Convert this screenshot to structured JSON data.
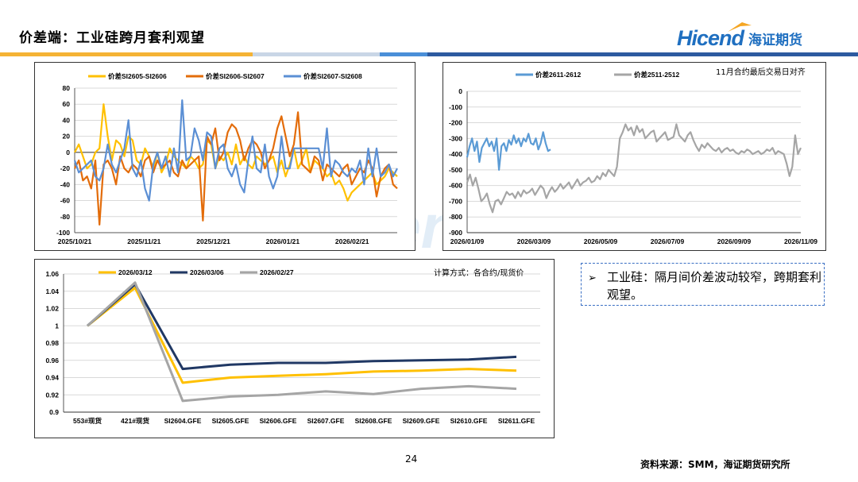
{
  "header": {
    "title": "价差端：工业硅跨月套利观望",
    "logo_text": "Hicend",
    "logo_cn": "海证期货"
  },
  "watermark": "Hicend",
  "colors": {
    "brand_blue": "#1f6fc0",
    "band_orange": "#f5b335",
    "band_blue": "#4a8fd8",
    "band_gray": "#a0a0a0"
  },
  "note": {
    "arrow": "➢",
    "text": "工业硅：隔月间价差波动较窄，跨期套利观望。"
  },
  "footer": {
    "page_number": "24",
    "source": "资料来源：SMM，海证期货研究所"
  },
  "chart_data": [
    {
      "type": "line",
      "ylim": [
        -100,
        80
      ],
      "yticks": [
        "80",
        "60",
        "40",
        "20",
        "0",
        "-20",
        "-40",
        "-60",
        "-80",
        "-100"
      ],
      "xticks": [
        "2025/10/21",
        "2025/11/21",
        "2025/12/21",
        "2026/01/21",
        "2026/02/21"
      ],
      "series": [
        {
          "name": "价差SI2605-SI2606",
          "color": "#ffc000",
          "values": [
            0,
            10,
            -5,
            -20,
            -15,
            0,
            5,
            60,
            20,
            -10,
            15,
            10,
            -5,
            20,
            15,
            -10,
            -15,
            5,
            -5,
            -20,
            0,
            -25,
            -15,
            5,
            -5,
            -10,
            -15,
            -20,
            -5,
            -10,
            -20,
            -15,
            15,
            10,
            -20,
            -5,
            -10,
            0,
            -15,
            10,
            -15,
            -5,
            -15,
            -20,
            -5,
            -10,
            -15,
            -10,
            -5,
            -25,
            -10,
            -30,
            -15,
            5,
            -20,
            -10,
            5,
            -25,
            -10,
            -15,
            -20,
            -30,
            -25,
            -40,
            -35,
            -45,
            -60,
            -50,
            -45,
            -40,
            -35,
            -30,
            -25,
            -40,
            -35,
            -30,
            -20,
            -25,
            -30
          ]
        },
        {
          "name": "价差SI2606-SI2607",
          "color": "#e36c0a",
          "values": [
            -20,
            -10,
            -35,
            -30,
            -45,
            -10,
            -90,
            -15,
            -10,
            -20,
            -40,
            -5,
            -20,
            -25,
            -15,
            -20,
            -30,
            -10,
            -5,
            -25,
            -10,
            -20,
            -15,
            -10,
            -25,
            -30,
            -10,
            -20,
            -15,
            -10,
            -5,
            -85,
            20,
            10,
            30,
            -10,
            0,
            25,
            35,
            30,
            15,
            -10,
            5,
            15,
            10,
            0,
            -20,
            -10,
            5,
            30,
            45,
            20,
            -5,
            10,
            50,
            -15,
            -20,
            -25,
            -5,
            -10,
            -35,
            -15,
            -20,
            -25,
            -30,
            -20,
            -15,
            -40,
            -30,
            -20,
            -25,
            -10,
            -20,
            -55,
            -30,
            -20,
            -15,
            -40,
            -45
          ]
        },
        {
          "name": "价差SI2607-SI2608",
          "color": "#5b8fd4",
          "values": [
            -10,
            -25,
            -20,
            -15,
            -10,
            -30,
            -35,
            -20,
            10,
            -15,
            -25,
            -10,
            5,
            40,
            -20,
            -30,
            -10,
            -45,
            -60,
            -15,
            0,
            -20,
            -5,
            -30,
            5,
            -25,
            65,
            -10,
            -5,
            30,
            15,
            -10,
            25,
            20,
            -20,
            5,
            10,
            -20,
            -30,
            -15,
            -40,
            -50,
            -10,
            20,
            -20,
            -25,
            10,
            -30,
            -45,
            -30,
            20,
            -20,
            -20,
            5,
            5,
            5,
            5,
            5,
            5,
            5,
            -20,
            30,
            -30,
            -10,
            -15,
            -25,
            -30,
            -20,
            -25,
            -10,
            -40,
            5,
            -30,
            5,
            -30,
            -25,
            -15,
            -30,
            -20
          ]
        }
      ]
    },
    {
      "type": "line",
      "ylim": [
        -900,
        0
      ],
      "yticks": [
        "0",
        "-100",
        "-200",
        "-300",
        "-400",
        "-500",
        "-600",
        "-700",
        "-800",
        "-900"
      ],
      "xticks": [
        "2026/01/09",
        "2026/03/09",
        "2026/05/09",
        "2026/07/09",
        "2026/09/09",
        "2026/11/09"
      ],
      "annotation": "11月合约最后交易日对齐",
      "series": [
        {
          "name": "价差2611-2612",
          "color": "#5b9bd5",
          "values": [
            -420,
            -350,
            -300,
            -380,
            -320,
            -450,
            -360,
            -330,
            -300,
            -350,
            -320,
            -380,
            -300,
            -500,
            -350,
            -330,
            -380,
            -310,
            -340,
            -280,
            -330,
            -300,
            -350,
            -300,
            -320,
            -270,
            -330,
            -340,
            -300,
            -370,
            -330,
            -260,
            -330,
            -380,
            -370
          ]
        },
        {
          "name": "价差2511-2512",
          "color": "#a5a5a5",
          "values": [
            -580,
            -530,
            -600,
            -550,
            -620,
            -700,
            -680,
            -650,
            -720,
            -770,
            -700,
            -690,
            -720,
            -680,
            -640,
            -660,
            -650,
            -680,
            -640,
            -670,
            -630,
            -650,
            -640,
            -620,
            -660,
            -630,
            -600,
            -620,
            -680,
            -640,
            -610,
            -640,
            -620,
            -590,
            -620,
            -600,
            -580,
            -620,
            -590,
            -560,
            -600,
            -580,
            -570,
            -550,
            -580,
            -570,
            -540,
            -560,
            -520,
            -540,
            -500,
            -520,
            -540,
            -480,
            -300,
            -260,
            -210,
            -250,
            -230,
            -280,
            -220,
            -260,
            -240,
            -300,
            -280,
            -260,
            -250,
            -320,
            -300,
            -280,
            -260,
            -310,
            -300,
            -290,
            -210,
            -280,
            -300,
            -320,
            -280,
            -260,
            -310,
            -350,
            -380,
            -340,
            -360,
            -330,
            -350,
            -370,
            -380,
            -360,
            -390,
            -370,
            -360,
            -380,
            -370,
            -390,
            -400,
            -380,
            -390,
            -370,
            -380,
            -400,
            -390,
            -380,
            -400,
            -390,
            -370,
            -380,
            -360,
            -400,
            -380,
            -390,
            -400,
            -460,
            -540,
            -480,
            -280,
            -400,
            -360
          ]
        }
      ]
    },
    {
      "type": "line",
      "ylim": [
        0.9,
        1.06
      ],
      "yticks": [
        "1.06",
        "1.04",
        "1.02",
        "1",
        "0.98",
        "0.96",
        "0.94",
        "0.92",
        "0.9"
      ],
      "categories": [
        "553#现货",
        "421#现货",
        "SI2604.GFE",
        "SI2605.GFE",
        "SI2606.GFE",
        "SI2607.GFE",
        "SI2608.GFE",
        "SI2609.GFE",
        "SI2610.GFE",
        "SI2611.GFE"
      ],
      "annotation": "计算方式：各合约/现货价",
      "series": [
        {
          "name": "2026/03/12",
          "color": "#ffc000",
          "values": [
            1.0,
            1.044,
            0.934,
            0.94,
            0.942,
            0.944,
            0.947,
            0.948,
            0.95,
            0.948
          ]
        },
        {
          "name": "2026/03/06",
          "color": "#203864",
          "values": [
            1.0,
            1.048,
            0.95,
            0.955,
            0.957,
            0.957,
            0.959,
            0.96,
            0.961,
            0.964
          ]
        },
        {
          "name": "2026/02/27",
          "color": "#a5a5a5",
          "values": [
            1.0,
            1.05,
            0.913,
            0.918,
            0.92,
            0.924,
            0.921,
            0.927,
            0.93,
            0.927
          ]
        }
      ]
    }
  ]
}
